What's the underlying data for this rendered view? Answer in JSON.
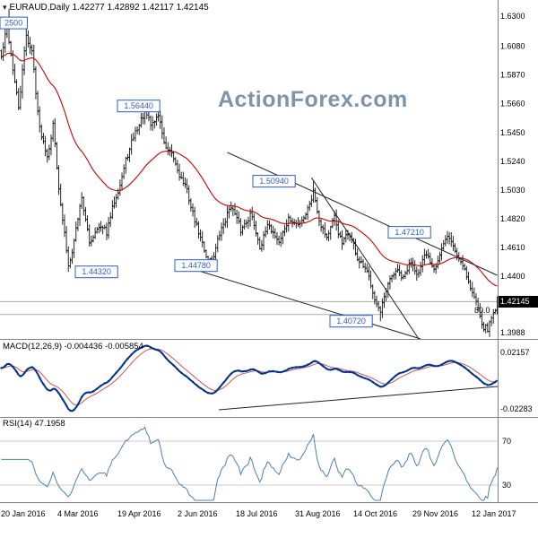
{
  "title": {
    "icon": "▾",
    "text": "EURAUD,Daily 1.42277 1.42892 1.42117 1.42145"
  },
  "watermark": "ActionForex.com",
  "panels": {
    "macd_label": "MACD(12,26,9) -0.004436 -0.005854",
    "rsi_label": "RSI(14) 47.1958"
  },
  "colors": {
    "bar": "#111111",
    "ma": "#cc0000",
    "macd_line": "#00338f",
    "macd_signal": "#cc5555",
    "rsi_line": "#4a80b8",
    "level_blue": "#2e5bcc",
    "watermark": "#7d94aa",
    "grid": "#aaaaaa",
    "border": "#808080",
    "trendline": "#222222"
  },
  "chart_data": [
    {
      "type": "bar",
      "title": "EURAUD Daily OHLC bars with red moving average",
      "ohlc": {
        "open": "1.42277",
        "high": "1.42892",
        "low": "1.42117",
        "close": "1.42145"
      },
      "ylim": [
        1.3942,
        1.6418
      ],
      "y_tick_labels": [
        "1.6300",
        "1.6080",
        "1.5870",
        "1.5660",
        "1.5450",
        "1.5240",
        "1.5030",
        "1.4820",
        "1.4610",
        "1.4400",
        "1.4190",
        "1.3988"
      ],
      "x_tick_labels": [
        "20 Jan 2016",
        "4 Mar 2016",
        "19 Apr 2016",
        "2 Jun 2016",
        "18 Jul 2016",
        "31 Aug 2016",
        "14 Oct 2016",
        "29 Nov 2016",
        "12 Jan 2017"
      ],
      "bars": 260,
      "close_anchors": [
        [
          0,
          1.6
        ],
        [
          3,
          1.622
        ],
        [
          6,
          1.592
        ],
        [
          9,
          1.562
        ],
        [
          13,
          1.616
        ],
        [
          16,
          1.604
        ],
        [
          20,
          1.548
        ],
        [
          24,
          1.53
        ],
        [
          27,
          1.552
        ],
        [
          31,
          1.492
        ],
        [
          35,
          1.448
        ],
        [
          38,
          1.468
        ],
        [
          42,
          1.499
        ],
        [
          46,
          1.463
        ],
        [
          50,
          1.478
        ],
        [
          55,
          1.471
        ],
        [
          60,
          1.5
        ],
        [
          65,
          1.524
        ],
        [
          70,
          1.545
        ],
        [
          75,
          1.56
        ],
        [
          78,
          1.549
        ],
        [
          82,
          1.558
        ],
        [
          86,
          1.532
        ],
        [
          90,
          1.524
        ],
        [
          96,
          1.506
        ],
        [
          102,
          1.476
        ],
        [
          107,
          1.455
        ],
        [
          110,
          1.452
        ],
        [
          114,
          1.47
        ],
        [
          120,
          1.493
        ],
        [
          125,
          1.472
        ],
        [
          130,
          1.487
        ],
        [
          135,
          1.464
        ],
        [
          140,
          1.477
        ],
        [
          145,
          1.466
        ],
        [
          150,
          1.481
        ],
        [
          155,
          1.477
        ],
        [
          160,
          1.49
        ],
        [
          163,
          1.503
        ],
        [
          166,
          1.483
        ],
        [
          170,
          1.47
        ],
        [
          174,
          1.481
        ],
        [
          178,
          1.463
        ],
        [
          182,
          1.471
        ],
        [
          186,
          1.453
        ],
        [
          190,
          1.443
        ],
        [
          194,
          1.431
        ],
        [
          198,
          1.412
        ],
        [
          202,
          1.431
        ],
        [
          206,
          1.444
        ],
        [
          210,
          1.437
        ],
        [
          214,
          1.451
        ],
        [
          218,
          1.444
        ],
        [
          222,
          1.454
        ],
        [
          226,
          1.448
        ],
        [
          230,
          1.461
        ],
        [
          234,
          1.468
        ],
        [
          238,
          1.455
        ],
        [
          242,
          1.447
        ],
        [
          245,
          1.433
        ],
        [
          248,
          1.421
        ],
        [
          252,
          1.405
        ],
        [
          254,
          1.402
        ],
        [
          257,
          1.413
        ],
        [
          259,
          1.42145
        ]
      ],
      "extremes": [
        {
          "i": 4,
          "side": "high",
          "price": 1.6355
        },
        {
          "i": 13,
          "side": "high",
          "price": 1.625
        },
        {
          "i": 35,
          "side": "low",
          "price": 1.4432
        },
        {
          "i": 75,
          "side": "high",
          "price": 1.5644
        },
        {
          "i": 110,
          "side": "low",
          "price": 1.4478
        },
        {
          "i": 163,
          "side": "high",
          "price": 1.5094
        },
        {
          "i": 198,
          "side": "low",
          "price": 1.4072
        },
        {
          "i": 234,
          "side": "high",
          "price": 1.4721
        },
        {
          "i": 254,
          "side": "low",
          "price": 1.3988
        }
      ],
      "levels": [
        {
          "label": "2500",
          "price": 1.625,
          "x": 0
        },
        {
          "label": "1.56440",
          "price": 1.5644,
          "x": 131
        },
        {
          "label": "1.50940",
          "price": 1.5094,
          "x": 282
        },
        {
          "label": "1.47210",
          "price": 1.4721,
          "x": 433
        },
        {
          "label": "1.44320",
          "price": 1.4432,
          "x": 84
        },
        {
          "label": "1.44780",
          "price": 1.4478,
          "x": 195
        },
        {
          "label": "1.40720",
          "price": 1.4072,
          "x": 368
        }
      ],
      "current_price": {
        "label": "1.42145",
        "value": 1.42145
      },
      "fib": {
        "label": "80.0",
        "value": 1.412
      },
      "trendlines": [
        {
          "i1": 118,
          "p1": 1.5305,
          "i2": 259,
          "p2": 1.4407
        },
        {
          "i1": 100,
          "p1": 1.4453,
          "i2": 219,
          "p2": 1.3942
        },
        {
          "i1": 162,
          "p1": 1.512,
          "i2": 218,
          "p2": 1.3942
        }
      ],
      "ma": {
        "kind": "ema",
        "period": 45
      }
    },
    {
      "type": "line",
      "title": "MACD(12,26,9)",
      "params": [
        12,
        26,
        9
      ],
      "values_display": [
        "-0.004436",
        "-0.005854"
      ],
      "y_tick_labels": [
        "0.02157",
        "-0.02283"
      ],
      "trendline": {
        "x1": 244,
        "y1": 457,
        "x2": 555,
        "y2": 431
      }
    },
    {
      "type": "line",
      "title": "RSI(14)",
      "period": 14,
      "value_display": "47.1958",
      "levels": [
        70,
        30
      ],
      "y_tick_labels": [
        "70",
        "30"
      ]
    }
  ]
}
